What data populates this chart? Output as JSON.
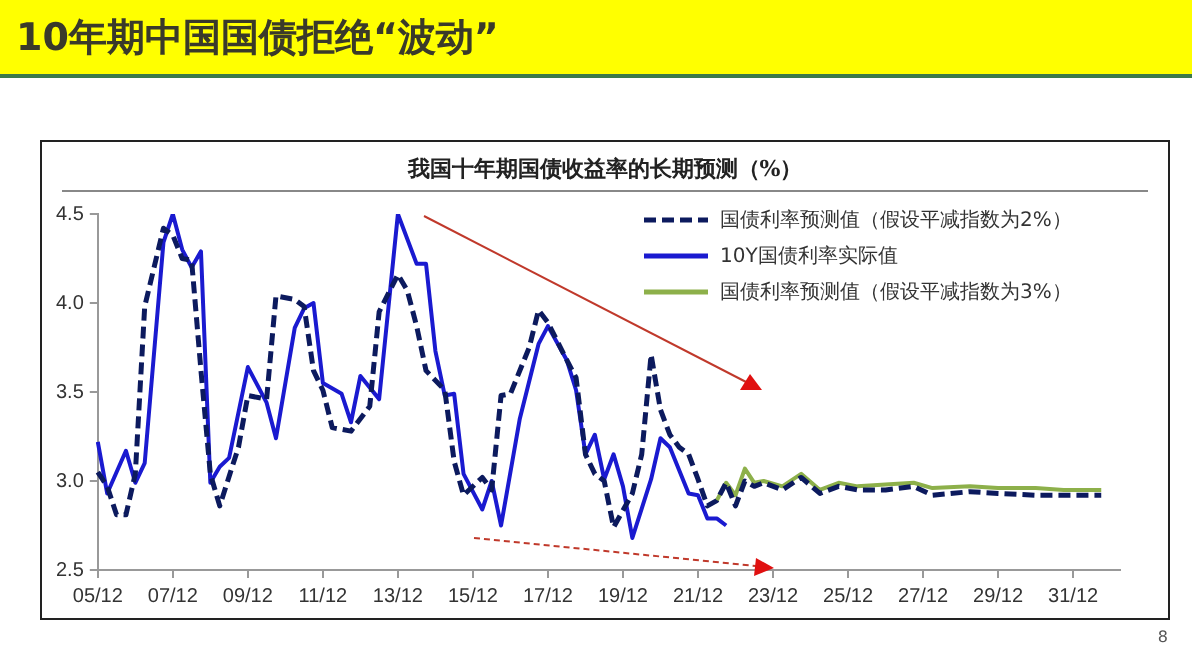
{
  "chart_data": {
    "type": "line",
    "title": "10年期中国国债拒绝“波动”",
    "subtitle": "我国十年期国债收益率的长期预测（%）",
    "annotations": [
      "8"
    ],
    "legend": "top right",
    "grid": false,
    "marker": "none",
    "categories": [
      "05/12",
      null,
      null,
      null,
      null,
      null,
      null,
      null,
      "07/12",
      null,
      null,
      null,
      null,
      null,
      null,
      null,
      "09/12",
      null,
      null,
      null,
      null,
      null,
      null,
      null,
      "11/12",
      null,
      null,
      null,
      null,
      null,
      null,
      null,
      "13/12",
      null,
      null,
      null,
      null,
      null,
      null,
      null,
      "15/12",
      null,
      null,
      null,
      null,
      null,
      null,
      null,
      "17/12",
      null,
      null,
      null,
      null,
      null,
      null,
      null,
      "19/12",
      null,
      null,
      null,
      null,
      null,
      null,
      null,
      "21/12",
      null,
      null,
      null,
      null,
      null,
      null,
      null,
      "23/12",
      null,
      null,
      null,
      null,
      null,
      null,
      null,
      "25/12",
      null,
      null,
      null,
      null,
      null,
      null,
      null,
      "27/12",
      null,
      null,
      null,
      null,
      null,
      null,
      null,
      "29/12",
      null,
      null,
      null,
      null,
      null,
      null,
      null,
      "31/12",
      null,
      null,
      null,
      null,
      null
    ],
    "ylim": [
      2.5,
      4.5
    ],
    "yticks": [
      {
        "value": 2.5,
        "label": "2.5"
      },
      {
        "value": 3,
        "label": "3.0"
      },
      {
        "value": 3.5,
        "label": "3.5"
      },
      {
        "value": 4,
        "label": "4.0"
      },
      {
        "value": 4.5,
        "label": "4.5"
      }
    ],
    "series": [
      {
        "name": "国债利率预测值（假设平减指数为2%）",
        "color": "#0c1a5e",
        "line_style": "dashed",
        "values": [
          3.05,
          2.97,
          2.81,
          2.81,
          3.04,
          3.98,
          null,
          4.42,
          4.38,
          4.25,
          4.24,
          3.62,
          3.04,
          2.86,
          null,
          3.19,
          3.48,
          null,
          3.46,
          4.04,
          null,
          4.02,
          3.98,
          3.62,
          3.51,
          3.3,
          null,
          3.28,
          null,
          3.42,
          3.95,
          null,
          4.16,
          4.07,
          3.87,
          3.62,
          null,
          3.51,
          3.11,
          2.92,
          null,
          3.02,
          2.95,
          3.48,
          3.49,
          null,
          3.75,
          3.96,
          3.89,
          null,
          3.68,
          3.58,
          3.15,
          3.04,
          3.0,
          2.74,
          null,
          2.93,
          3.15,
          3.71,
          3.4,
          3.26,
          3.19,
          3.15,
          3.01,
          2.86,
          2.89,
          2.99,
          2.86,
          3.0,
          2.97,
          2.99,
          null,
          2.95,
          null,
          3.02,
          null,
          2.93,
          null,
          2.97,
          null,
          2.95,
          null,
          null,
          2.95,
          null,
          null,
          2.97,
          null,
          2.92,
          null,
          null,
          null,
          2.94,
          null,
          null,
          2.93,
          null,
          null,
          null,
          2.92,
          null,
          null,
          2.92,
          null,
          null,
          null,
          2.92,
          null,
          null
        ]
      },
      {
        "name": "10Y国债利率实际值",
        "color": "#1a1ad0",
        "line_style": "solid",
        "values": [
          3.22,
          2.93,
          null,
          3.17,
          2.99,
          3.1,
          null,
          4.34,
          4.5,
          4.3,
          4.2,
          4.29,
          2.99,
          3.08,
          3.13,
          null,
          3.64,
          null,
          3.44,
          3.24,
          null,
          3.86,
          3.97,
          4.0,
          3.55,
          null,
          3.49,
          3.33,
          3.59,
          null,
          3.46,
          null,
          4.5,
          null,
          4.22,
          4.22,
          3.73,
          3.48,
          3.49,
          3.04,
          null,
          2.84,
          3.0,
          2.75,
          null,
          3.35,
          null,
          3.77,
          3.87,
          null,
          3.68,
          3.51,
          3.15,
          3.26,
          3.01,
          3.15,
          2.97,
          2.68,
          null,
          3.01,
          3.24,
          3.19,
          null,
          2.93,
          2.92,
          2.79,
          2.79,
          2.75,
          null,
          null,
          null,
          null,
          null,
          null,
          null,
          null,
          null,
          null,
          null,
          null,
          null,
          null,
          null,
          null,
          null,
          null,
          null,
          null,
          null,
          null,
          null,
          null,
          null,
          null,
          null,
          null,
          null,
          null,
          null,
          null,
          null,
          null,
          null,
          null,
          null,
          null,
          null,
          null,
          null,
          null
        ]
      },
      {
        "name": "国债利率预测值（假设平减指数为3%）",
        "color": "#8db04a",
        "line_style": "solid",
        "values": [
          null,
          null,
          null,
          null,
          null,
          null,
          null,
          null,
          null,
          null,
          null,
          null,
          null,
          null,
          null,
          null,
          null,
          null,
          null,
          null,
          null,
          null,
          null,
          null,
          null,
          null,
          null,
          null,
          null,
          null,
          null,
          null,
          null,
          null,
          null,
          null,
          null,
          null,
          null,
          null,
          null,
          null,
          null,
          null,
          null,
          null,
          null,
          null,
          null,
          null,
          null,
          null,
          null,
          null,
          null,
          null,
          null,
          null,
          null,
          null,
          null,
          null,
          null,
          null,
          null,
          null,
          2.89,
          2.99,
          2.92,
          3.07,
          2.99,
          3.0,
          null,
          2.97,
          null,
          3.04,
          null,
          2.95,
          null,
          2.99,
          null,
          2.97,
          null,
          null,
          2.98,
          null,
          null,
          2.99,
          null,
          2.96,
          null,
          null,
          null,
          2.97,
          null,
          null,
          2.96,
          null,
          null,
          null,
          2.96,
          null,
          null,
          2.95,
          null,
          null,
          null,
          2.95,
          null,
          null
        ]
      }
    ]
  }
}
